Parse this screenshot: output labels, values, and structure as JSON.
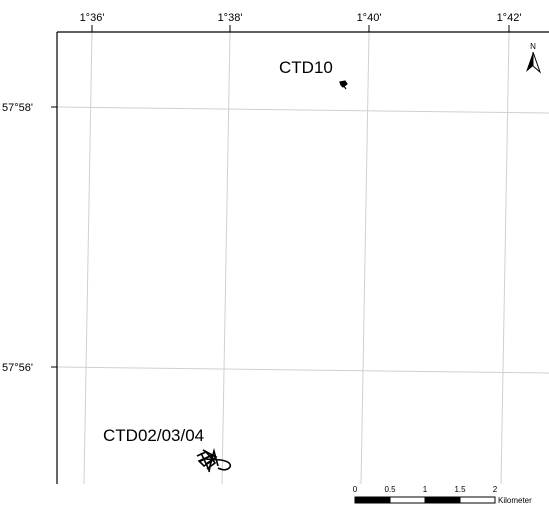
{
  "map": {
    "longitude_ticks": [
      "1°36'",
      "1°38'",
      "1°40'",
      "1°42'"
    ],
    "latitude_ticks": [
      "57°58'",
      "57°56'"
    ],
    "stations": [
      {
        "name": "CTD10"
      },
      {
        "name": "CTD02/03/04"
      }
    ],
    "north_arrow": {
      "label": "N",
      "icon": "north-arrow-icon"
    },
    "scale_bar": {
      "ticks": [
        "0",
        "0.5",
        "1",
        "1.5",
        "2"
      ],
      "unit": "Kilometer"
    },
    "colors": {
      "graticule": "#d0d0d0",
      "frame": "#000000",
      "track": "#000000"
    }
  }
}
